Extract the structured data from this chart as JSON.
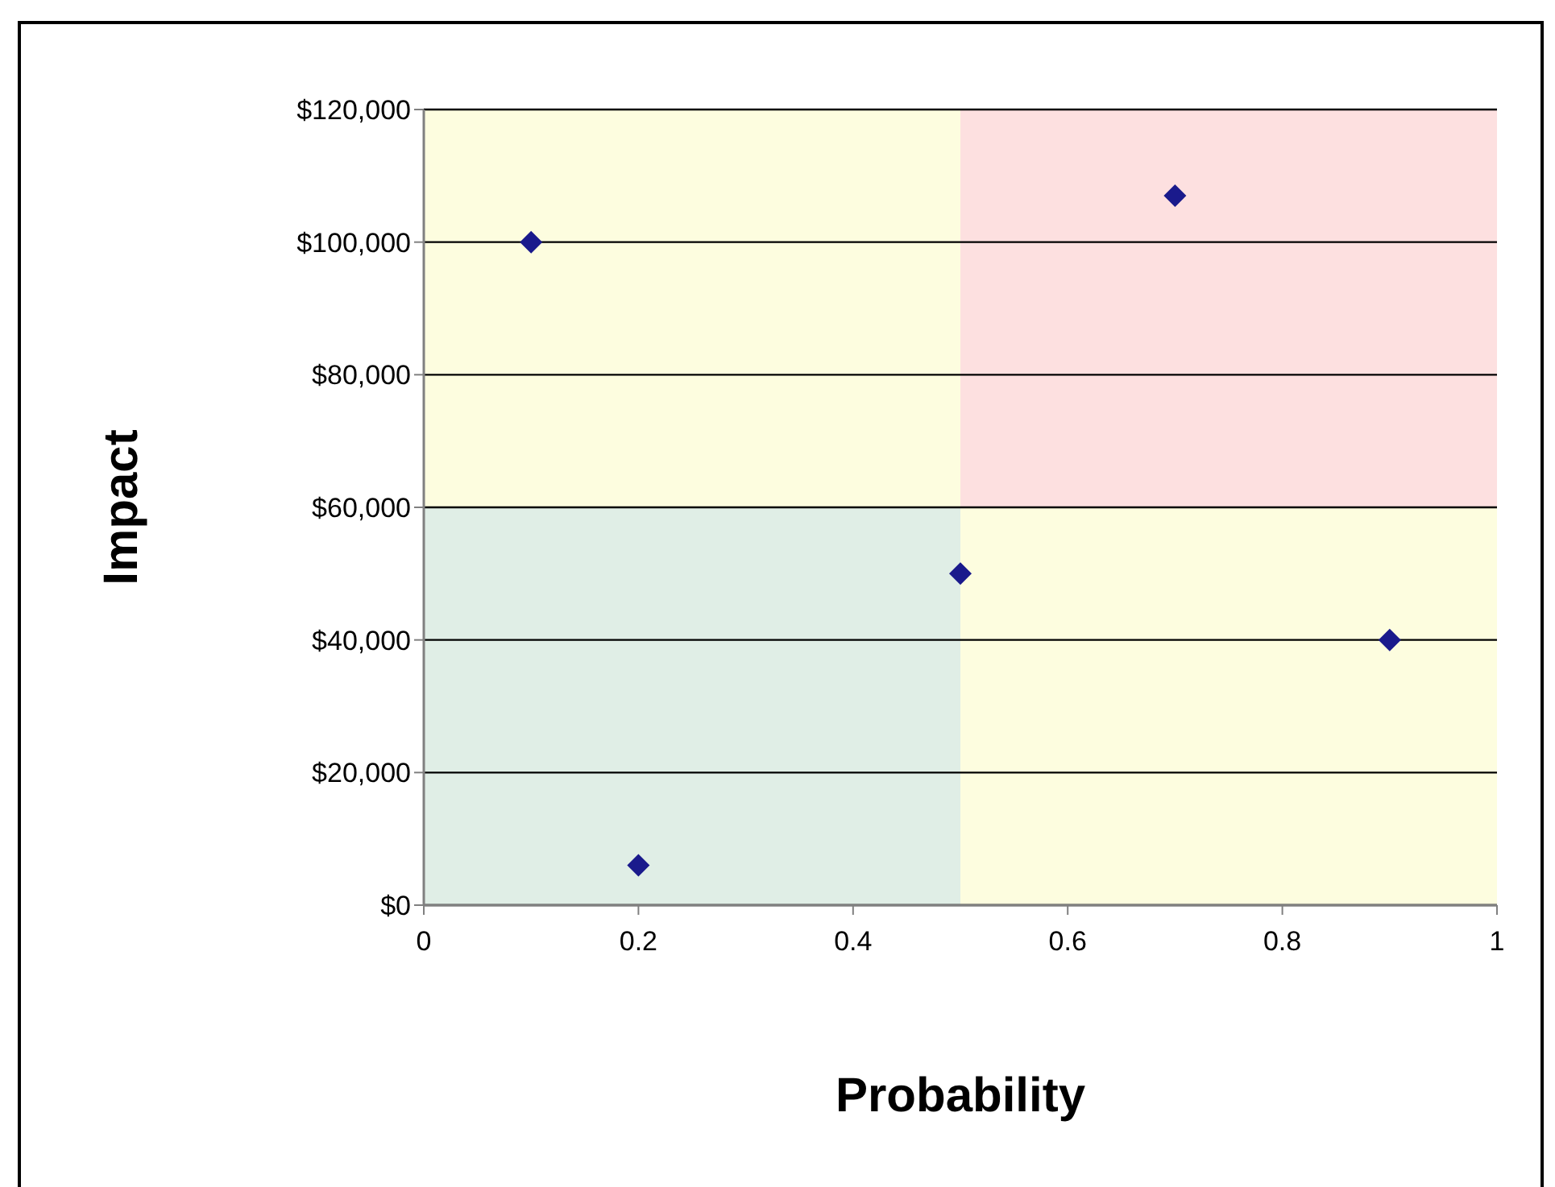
{
  "chart_data": {
    "type": "scatter",
    "xlabel": "Probability",
    "ylabel": "Impact",
    "x": [
      0.1,
      0.2,
      0.5,
      0.7,
      0.9
    ],
    "series": [
      {
        "color": "#1a1a8c",
        "values": [
          100000,
          6000,
          50000,
          107000,
          40000
        ]
      }
    ],
    "xlim": [
      0,
      1
    ],
    "xticks": [
      0,
      0.2,
      0.4,
      0.6,
      0.8,
      1
    ],
    "ylim": [
      0,
      120000
    ],
    "yticks": [
      {
        "value": 0,
        "label": "$0"
      },
      {
        "value": 20000,
        "label": "$20,000"
      },
      {
        "value": 40000,
        "label": "$40,000"
      },
      {
        "value": 60000,
        "label": "$60,000"
      },
      {
        "value": 80000,
        "label": "$80,000"
      },
      {
        "value": 100000,
        "label": "$100,000"
      },
      {
        "value": 120000,
        "label": "$120,000"
      }
    ],
    "grid": "y",
    "marker": "diamond"
  }
}
